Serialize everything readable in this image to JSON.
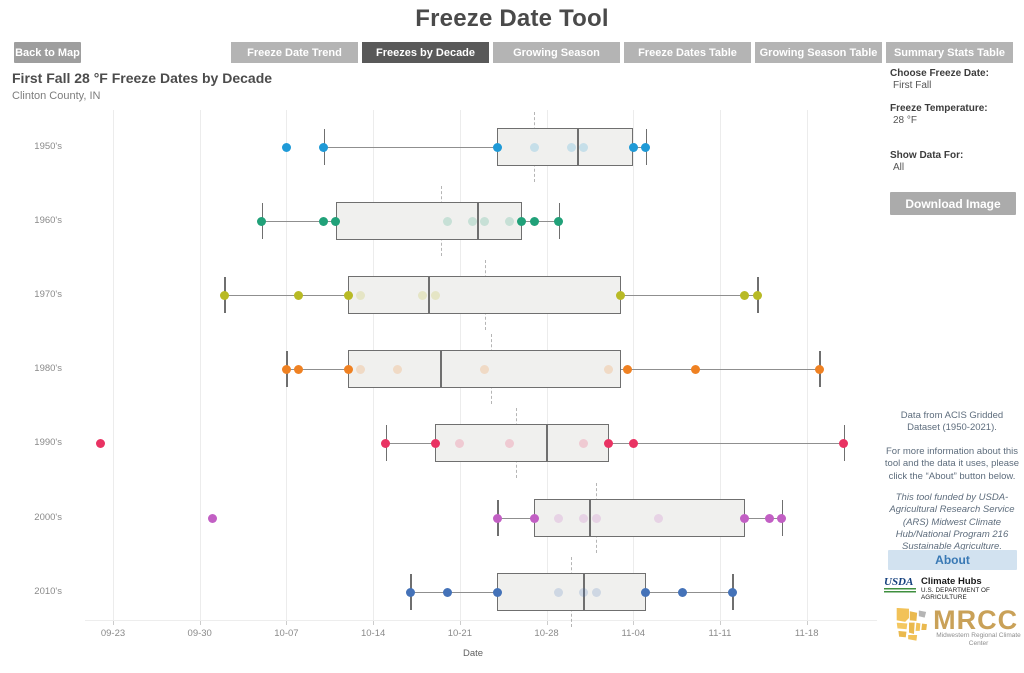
{
  "page": {
    "title": "Freeze Date Tool"
  },
  "nav": {
    "back_button": "Back to Map",
    "tabs": [
      {
        "label": "Freeze Date Trend",
        "active": false
      },
      {
        "label": "Freezes by Decade",
        "active": true
      },
      {
        "label": "Growing Season",
        "active": false
      },
      {
        "label": "Freeze Dates Table",
        "active": false
      },
      {
        "label": "Growing Season Table",
        "active": false
      },
      {
        "label": "Summary Stats Table",
        "active": false
      }
    ]
  },
  "chart_header": {
    "title": "First Fall 28 °F Freeze Dates by Decade",
    "subtitle": "Clinton County, IN"
  },
  "sidebar": {
    "choose_freeze_date_label": "Choose Freeze Date:",
    "choose_freeze_date_value": "First Fall",
    "freeze_temperature_label": "Freeze Temperature:",
    "freeze_temperature_value": "28 °F",
    "show_data_for_label": "Show Data For:",
    "show_data_for_value": "All",
    "download_button": "Download Image",
    "data_note": "Data from ACIS Gridded Dataset (1950-2021).",
    "about_note": "For more information about this tool and the data it uses, please click the “About” button below.",
    "funding_note": "This tool funded by USDA-Agricultural Research Service (ARS) Midwest Climate Hub/National Program 216 Sustainable Agriculture.",
    "about_button": "About",
    "usda_logo": {
      "acronym": "USDA",
      "name": "Climate Hubs",
      "dept": "U.S. DEPARTMENT OF AGRICULTURE"
    },
    "mrcc_logo": {
      "acronym": "MRCC",
      "name": "Midwestern Regional Climate Center"
    }
  },
  "chart_data": {
    "type": "boxplot",
    "orientation": "horizontal",
    "title": "First Fall 28 °F Freeze Dates by Decade",
    "subtitle": "Clinton County, IN",
    "xlabel": "Date",
    "x_ticks": [
      "09-23",
      "09-30",
      "10-07",
      "10-14",
      "10-21",
      "10-28",
      "11-04",
      "11-11",
      "11-18"
    ],
    "x_range": [
      "09-20",
      "11-23"
    ],
    "grid": true,
    "style": {
      "box_fill": "#f0f0ee",
      "box_border": "#6f6f6f",
      "whisker_color": "#8f8f8f",
      "mean_line_color": "#b5b5b5",
      "grid_color": "#ececec"
    },
    "rows": [
      {
        "label": "1950's",
        "color": "#1f9ad7",
        "whisker_low": "10-10",
        "q1": "10-24",
        "median": "10-30.5",
        "q3": "11-04",
        "whisker_high": "11-05",
        "mean": "10-27",
        "outliers": [
          "10-07"
        ],
        "points_solid": [
          "10-07",
          "10-10",
          "10-24",
          "11-04",
          "11-05"
        ],
        "points_faint": [
          "10-27",
          "10-30",
          "10-31"
        ]
      },
      {
        "label": "1960's",
        "color": "#21a179",
        "whisker_low": "10-05",
        "q1": "10-11",
        "median": "10-22.5",
        "q3": "10-26",
        "whisker_high": "10-29",
        "mean": "10-19.5",
        "outliers": [],
        "points_solid": [
          "10-05",
          "10-10",
          "10-11",
          "10-26",
          "10-27",
          "10-29"
        ],
        "points_faint": [
          "10-20",
          "10-22",
          "10-23",
          "10-25"
        ]
      },
      {
        "label": "1970's",
        "color": "#b8ba25",
        "whisker_low": "10-02",
        "q1": "10-12",
        "median": "10-18.5",
        "q3": "11-03",
        "whisker_high": "11-14",
        "mean": "10-23",
        "outliers": [],
        "points_solid": [
          "10-02",
          "10-08",
          "10-12",
          "11-03",
          "11-13",
          "11-14"
        ],
        "points_faint": [
          "10-13",
          "10-18",
          "10-19"
        ]
      },
      {
        "label": "1980's",
        "color": "#ef8122",
        "whisker_low": "10-07",
        "q1": "10-12",
        "median": "10-19.5",
        "q3": "11-03",
        "whisker_high": "11-19",
        "mean": "10-23.5",
        "outliers": [],
        "points_solid": [
          "10-07",
          "10-08",
          "10-12",
          "11-03.5",
          "11-09",
          "11-19"
        ],
        "points_faint": [
          "10-13",
          "10-16",
          "10-23",
          "11-02"
        ]
      },
      {
        "label": "1990's",
        "color": "#e93363",
        "whisker_low": "10-15",
        "q1": "10-19",
        "median": "10-28",
        "q3": "11-02",
        "whisker_high": "11-21",
        "mean": "10-25.5",
        "outliers": [
          "09-22"
        ],
        "points_solid": [
          "09-22",
          "10-15",
          "10-19",
          "11-02",
          "11-04",
          "11-21"
        ],
        "points_faint": [
          "10-21",
          "10-25",
          "10-31"
        ]
      },
      {
        "label": "2000's",
        "color": "#c25fc4",
        "whisker_low": "10-24",
        "q1": "10-27",
        "median": "10-31.5",
        "q3": "11-13",
        "whisker_high": "11-16",
        "mean": "11-01",
        "outliers": [
          "10-01"
        ],
        "points_solid": [
          "10-01",
          "10-24",
          "10-27",
          "11-13",
          "11-15",
          "11-16"
        ],
        "points_faint": [
          "10-29",
          "10-31",
          "11-01",
          "11-06"
        ]
      },
      {
        "label": "2010's",
        "color": "#4472b8",
        "whisker_low": "10-17",
        "q1": "10-24",
        "median": "10-31",
        "q3": "11-05",
        "whisker_high": "11-12",
        "mean": "10-30",
        "outliers": [],
        "points_solid": [
          "10-17",
          "10-20",
          "10-24",
          "11-05",
          "11-08",
          "11-12"
        ],
        "points_faint": [
          "10-29",
          "10-31",
          "11-01"
        ]
      }
    ]
  }
}
